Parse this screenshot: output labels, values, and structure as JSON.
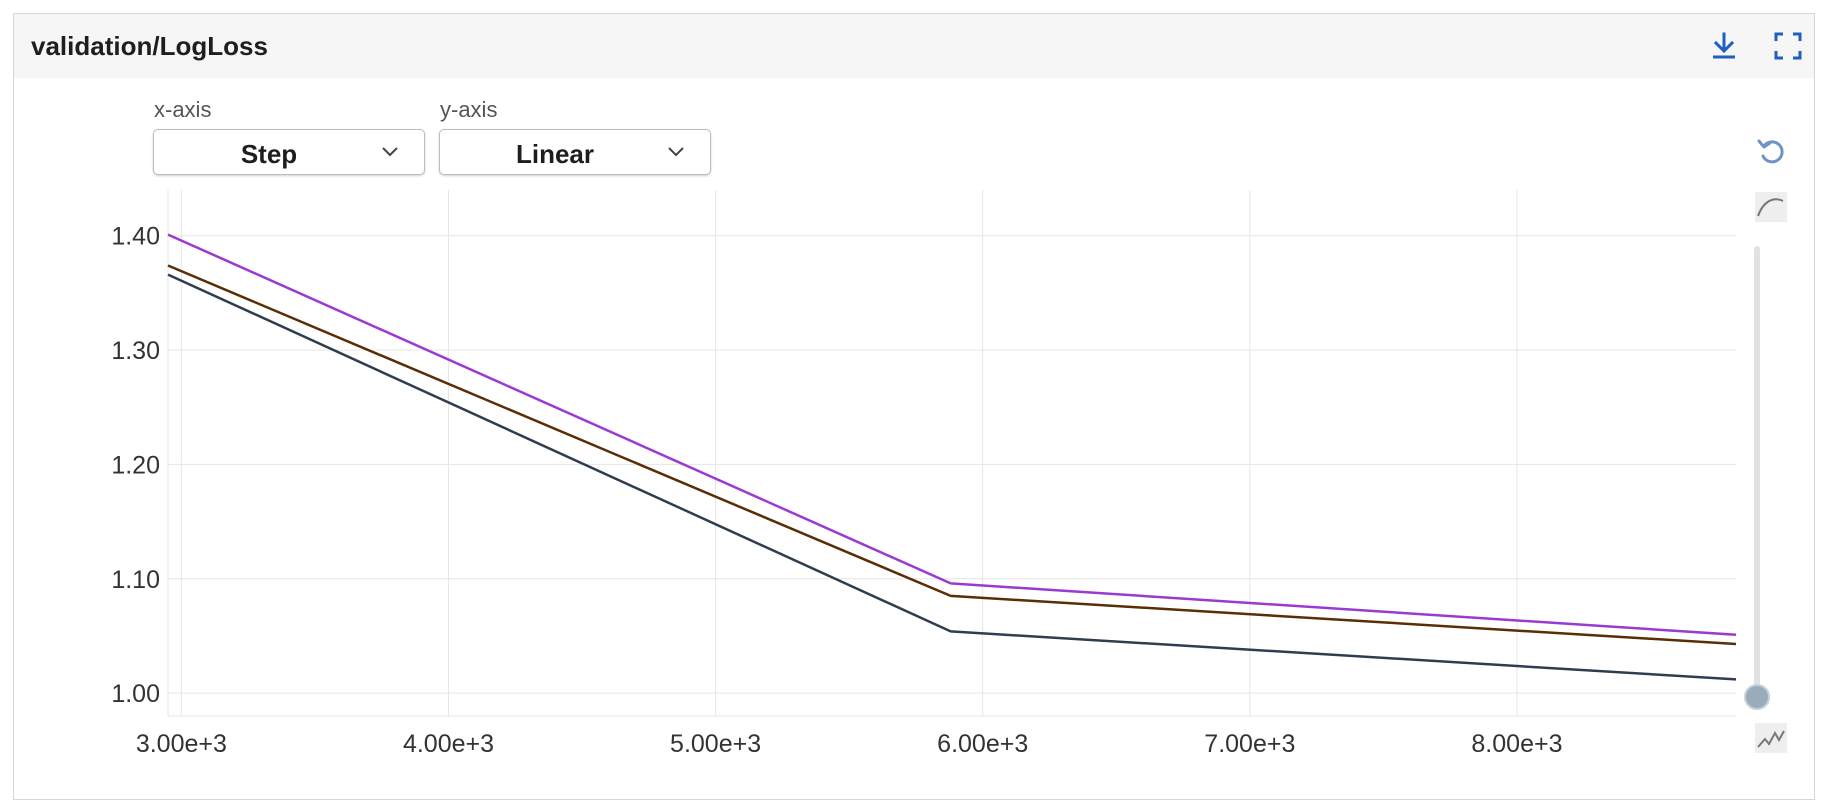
{
  "card": {
    "title": "validation/LogLoss",
    "download_icon": "download-icon",
    "fullscreen_icon": "fullscreen-icon"
  },
  "controls": {
    "xaxis_label": "x-axis",
    "xaxis_value": "Step",
    "yaxis_label": "y-axis",
    "yaxis_value": "Linear"
  },
  "side_tools": {
    "reset_icon": "reset-zoom-icon",
    "smooth_icon": "smoothing-curve-icon",
    "raw_icon": "raw-line-icon",
    "smoothing_value": 0
  },
  "colors": {
    "accent": "#1f5fbf",
    "grid": "#e6e6e6"
  },
  "chart_data": {
    "type": "line",
    "xlabel": "",
    "ylabel": "",
    "xlim": [
      2950,
      8820
    ],
    "ylim": [
      0.98,
      1.44
    ],
    "x_ticks": [
      3000,
      4000,
      5000,
      6000,
      7000,
      8000
    ],
    "x_tick_labels": [
      "3.00e+3",
      "4.00e+3",
      "5.00e+3",
      "6.00e+3",
      "7.00e+3",
      "8.00e+3"
    ],
    "y_ticks": [
      1.0,
      1.1,
      1.2,
      1.3,
      1.4
    ],
    "y_tick_labels": [
      "1.00",
      "1.10",
      "1.20",
      "1.30",
      "1.40"
    ],
    "grid": true,
    "series": [
      {
        "color": "#9b3ad1",
        "x": [
          2950,
          5880,
          8820
        ],
        "y": [
          1.401,
          1.096,
          1.051
        ]
      },
      {
        "color": "#5a2e05",
        "x": [
          2950,
          5880,
          8820
        ],
        "y": [
          1.374,
          1.085,
          1.043
        ]
      },
      {
        "color": "#2f3e4f",
        "x": [
          2950,
          5880,
          8820
        ],
        "y": [
          1.366,
          1.054,
          1.012
        ]
      }
    ]
  }
}
